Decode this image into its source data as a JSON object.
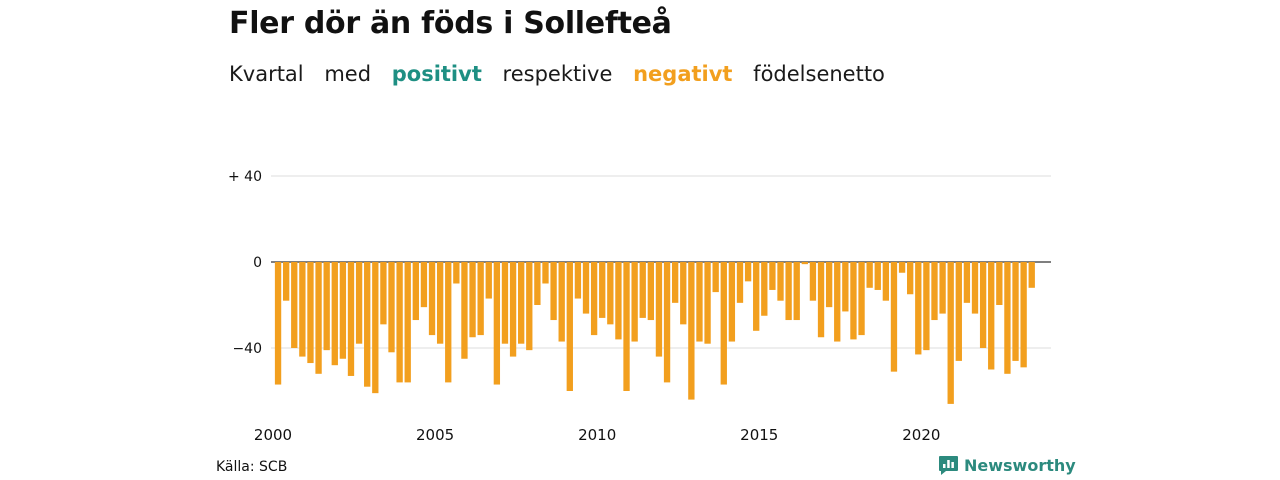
{
  "title": "Fler dör än föds i Sollefteå",
  "subtitle": {
    "words": [
      "Kvartal",
      "med",
      "positivt",
      "respektive",
      "negativt",
      "födelsenetto"
    ]
  },
  "source": "Källa: SCB",
  "brand": "Newsworthy",
  "colors": {
    "negative": "#f29f1e",
    "positive": "#1e8f83",
    "grid": "#dddddd",
    "axis": "#333333"
  },
  "chart_data": {
    "type": "bar",
    "x_start": 2000,
    "x_end": 2024,
    "periods_per_year": 4,
    "ylim": [
      -66,
      45
    ],
    "y_ticks": [
      {
        "value": 40,
        "label": "+ 40"
      },
      {
        "value": 0,
        "label": "0"
      },
      {
        "value": -40,
        "label": "−40"
      }
    ],
    "x_ticks": [
      {
        "value": 2000,
        "label": "2000"
      },
      {
        "value": 2005,
        "label": "2005"
      },
      {
        "value": 2010,
        "label": "2010"
      },
      {
        "value": 2015,
        "label": "2015"
      },
      {
        "value": 2020,
        "label": "2020"
      }
    ],
    "values": [
      -57,
      -18,
      -40,
      -44,
      -47,
      -52,
      -41,
      -48,
      -45,
      -53,
      -38,
      -58,
      -61,
      -29,
      -42,
      -56,
      -56,
      -27,
      -21,
      -34,
      -38,
      -56,
      -10,
      -45,
      -35,
      -34,
      -17,
      -57,
      -38,
      -44,
      -38,
      -41,
      -20,
      -10,
      -27,
      -37,
      -60,
      -17,
      -24,
      -34,
      -26,
      -29,
      -36,
      -60,
      -37,
      -26,
      -27,
      -44,
      -56,
      -19,
      -29,
      -64,
      -37,
      -38,
      -14,
      -57,
      -37,
      -19,
      -9,
      -32,
      -25,
      -13,
      -18,
      -27,
      -27,
      -1,
      -18,
      -35,
      -21,
      -37,
      -23,
      -36,
      -34,
      -12,
      -13,
      -18,
      -51,
      -5,
      -15,
      -43,
      -41,
      -27,
      -24,
      -66,
      -46,
      -19,
      -24,
      -40,
      -50,
      -20,
      -52,
      -46,
      -49,
      -12
    ]
  }
}
